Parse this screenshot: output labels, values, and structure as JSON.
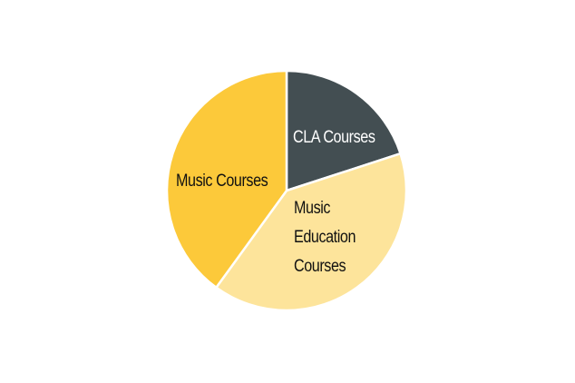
{
  "chart_data": {
    "type": "pie",
    "categories": [
      "CLA Courses",
      "Music Education Courses",
      "Music Courses"
    ],
    "values": [
      20,
      40,
      40
    ],
    "colors": [
      "#434e52",
      "#fde49b",
      "#fcc93a"
    ]
  }
}
